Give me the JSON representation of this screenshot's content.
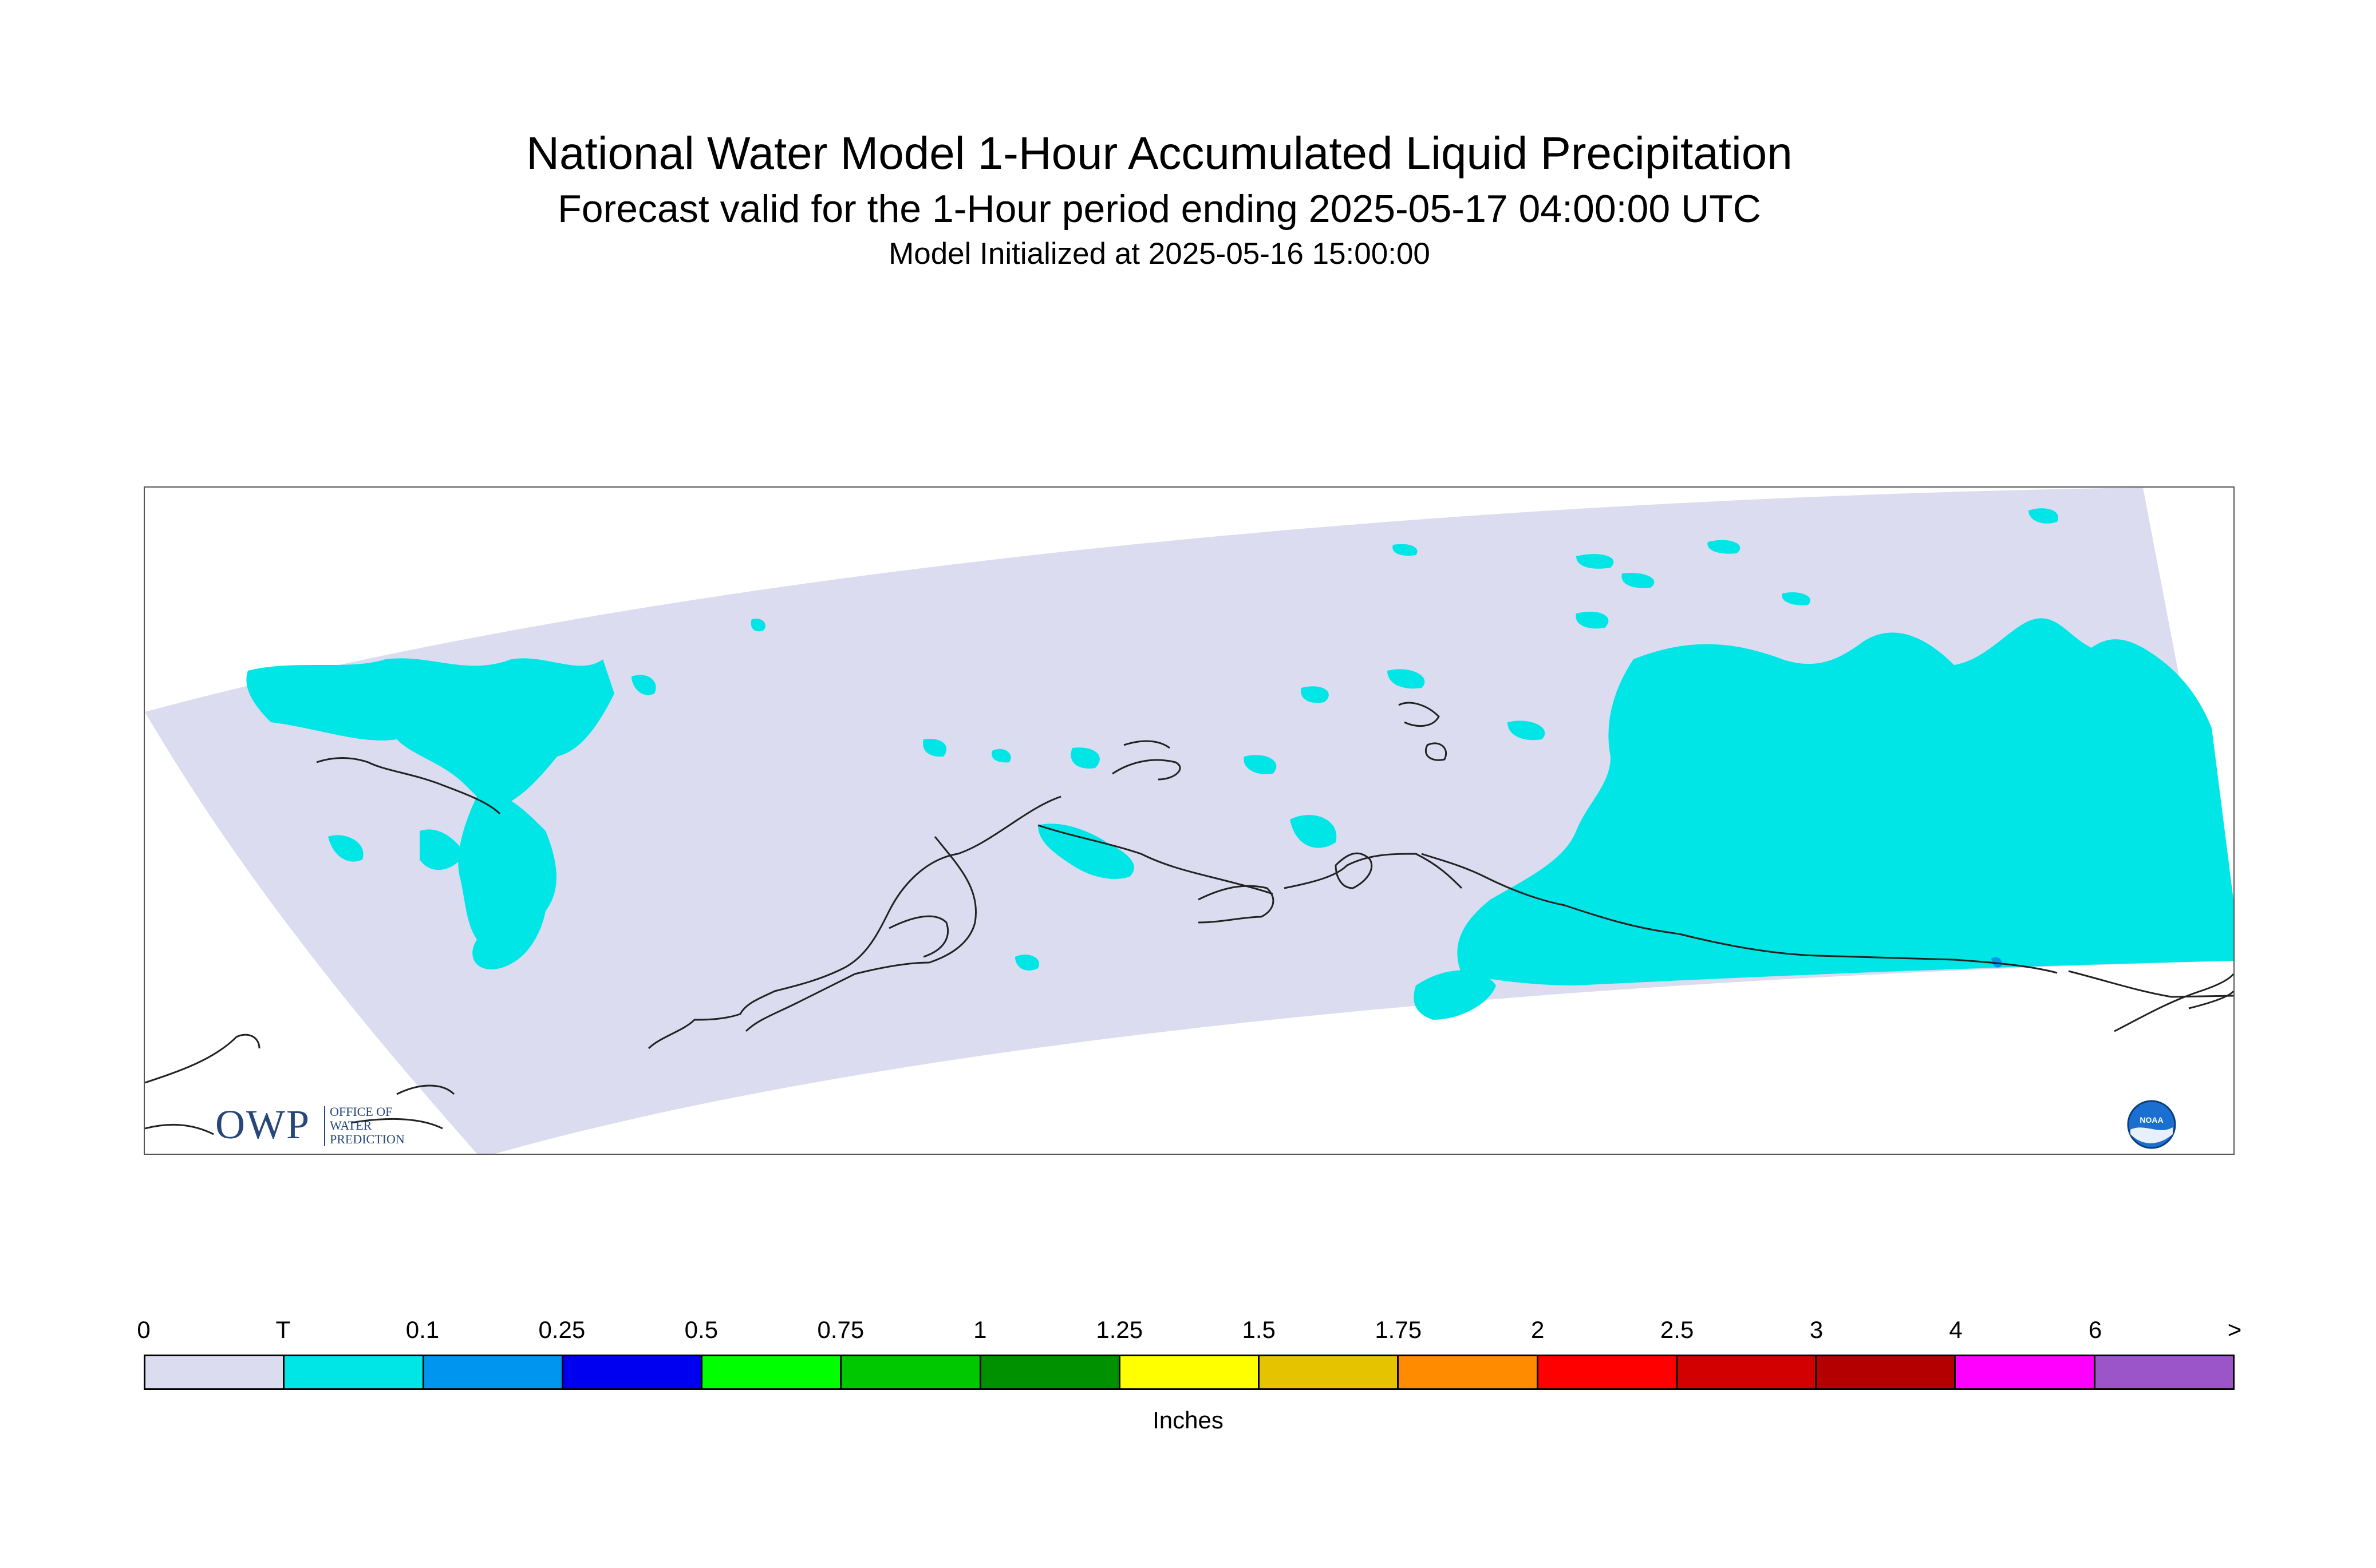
{
  "title": {
    "main": "National Water Model 1-Hour Accumulated Liquid Precipitation",
    "forecast": "Forecast valid for the 1-Hour period ending 2025-05-17 04:00:00 UTC",
    "init": "Model Initialized at 2025-05-16 15:00:00"
  },
  "logos": {
    "owp": {
      "main": "OWP",
      "line1": "OFFICE OF",
      "line2": "WATER",
      "line3": "PREDICTION"
    },
    "noaa": {
      "text": "NOAA",
      "color": "#1a6fd1"
    }
  },
  "map": {
    "region": "Alaska",
    "domain_color": "#dcdcf0",
    "coast_color": "#222222"
  },
  "legend": {
    "unit_label": "Inches",
    "tick_labels": [
      "0",
      "T",
      "0.1",
      "0.25",
      "0.5",
      "0.75",
      "1",
      "1.25",
      "1.5",
      "1.75",
      "2",
      "2.5",
      "3",
      "4",
      "6",
      ">"
    ],
    "colors": [
      "#dcdcf0",
      "#00e6e6",
      "#0096f0",
      "#0000f0",
      "#00ff00",
      "#00c800",
      "#009100",
      "#ffff00",
      "#e6c300",
      "#ff8c00",
      "#ff0000",
      "#d20000",
      "#b40000",
      "#ff00ff",
      "#9b55c8"
    ]
  }
}
